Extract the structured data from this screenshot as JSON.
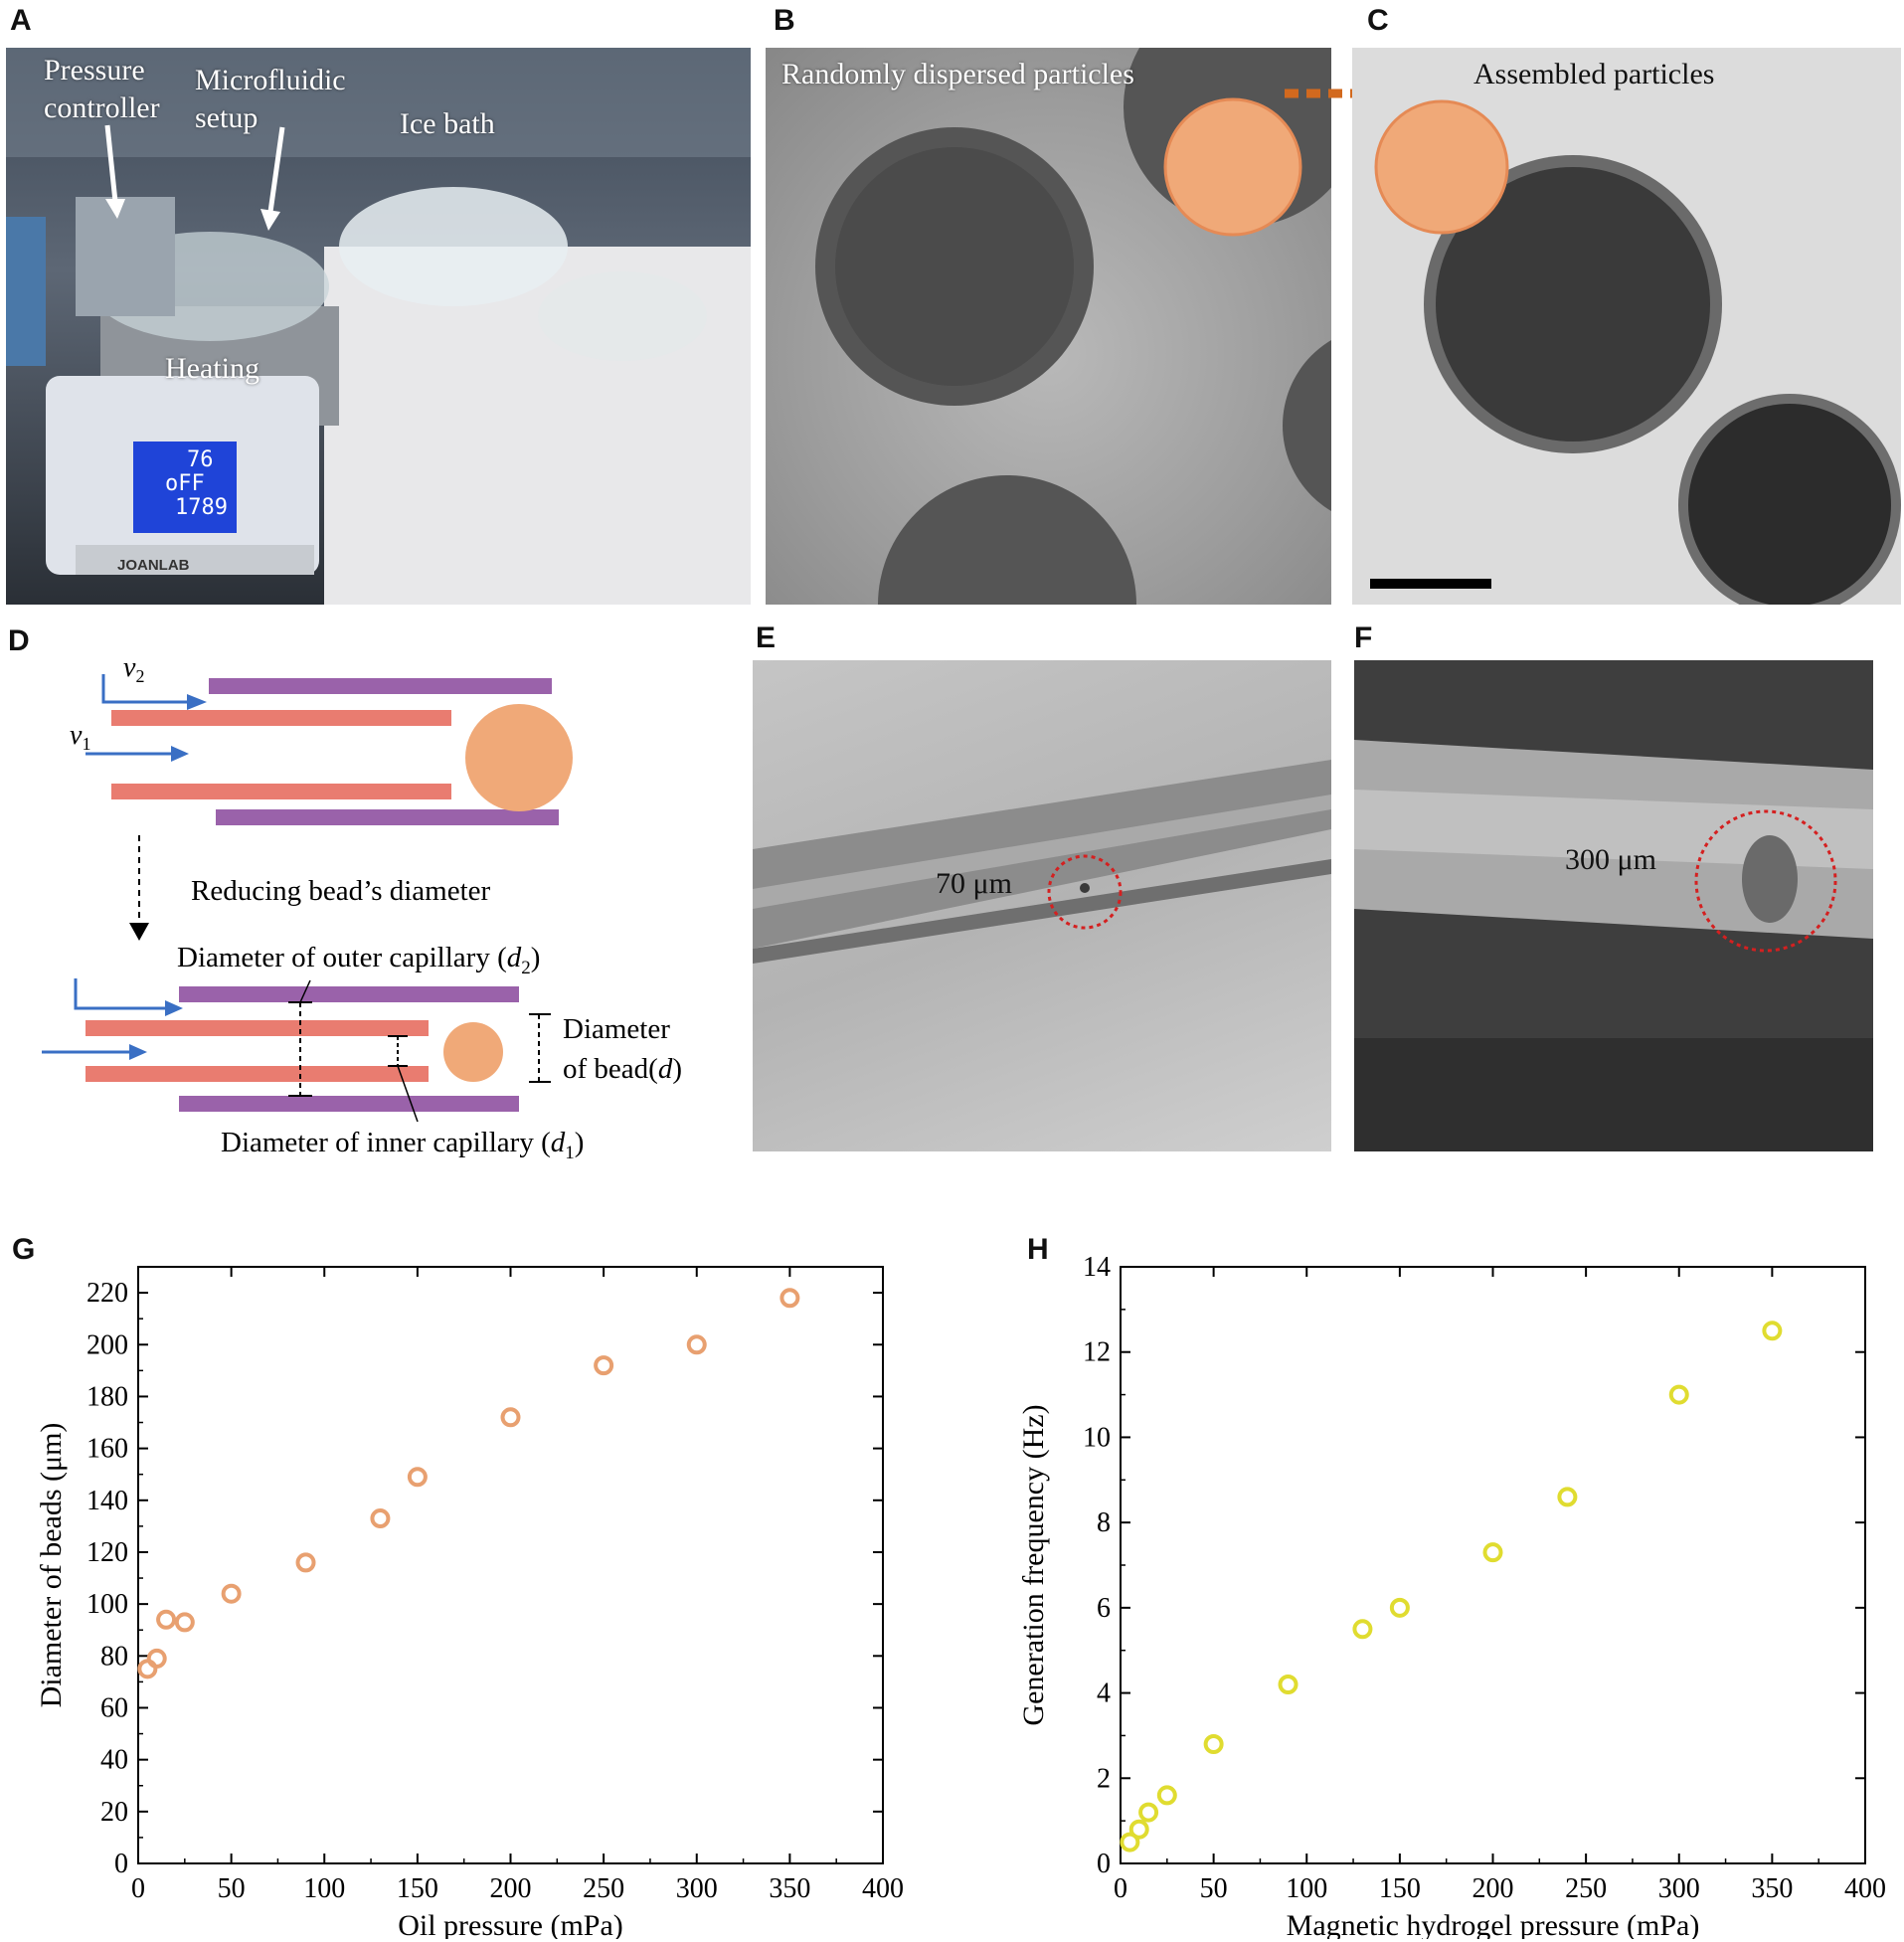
{
  "panels": {
    "A": {
      "letter": "A",
      "labels": {
        "pressure": "Pressure",
        "controller": "controller",
        "microfluidic": "Microfluidic",
        "setup": "setup",
        "ice_bath": "Ice bath",
        "heating": "Heating"
      },
      "display": {
        "line1": "76",
        "line2": "oFF",
        "line3": "1789"
      },
      "brand": "JOANLAB"
    },
    "B": {
      "letter": "B",
      "label": "Randomly dispersed particles"
    },
    "C": {
      "letter": "C",
      "label": "Assembled particles"
    },
    "D": {
      "letter": "D",
      "v2": "v",
      "v2_sub": "2",
      "v1": "v",
      "v1_sub": "1",
      "reducing": "Reducing bead’s diameter",
      "outer": "Diameter of outer capillary (",
      "outer_var": "d",
      "outer_sub": "2",
      "outer_close": ")",
      "diameter": "Diameter",
      "of_bead": "of bead(",
      "bead_var": "d",
      "bead_close": ")",
      "inner": "Diameter of inner capillary (",
      "inner_var": "d",
      "inner_sub": "1",
      "inner_close": ")"
    },
    "E": {
      "letter": "E",
      "label": "70 μm"
    },
    "F": {
      "letter": "F",
      "label": "300 μm"
    },
    "G": {
      "letter": "G"
    },
    "H": {
      "letter": "H"
    }
  },
  "colors": {
    "orange": "#e8a070",
    "yellow": "#e0dc30",
    "purple": "#9a62aa",
    "salmon": "#e97c70",
    "blue": "#3a6fc4",
    "red_dot": "#d42020"
  },
  "chart_data": [
    {
      "type": "scatter",
      "panel": "G",
      "xlabel": "Oil pressure (mPa)",
      "ylabel": "Diameter of beads (μm)",
      "xlim": [
        0,
        400
      ],
      "ylim": [
        0,
        230
      ],
      "xticks": [
        0,
        50,
        100,
        150,
        200,
        250,
        300,
        350,
        400
      ],
      "yticks": [
        0,
        20,
        40,
        60,
        80,
        100,
        120,
        140,
        160,
        180,
        200,
        220
      ],
      "x": [
        5,
        10,
        15,
        25,
        50,
        90,
        130,
        150,
        200,
        250,
        300,
        350
      ],
      "y": [
        75,
        79,
        94,
        93,
        104,
        116,
        133,
        149,
        172,
        192,
        200,
        218
      ],
      "color": "#e8a070"
    },
    {
      "type": "scatter",
      "panel": "H",
      "xlabel": "Magnetic hydrogel pressure (mPa)",
      "ylabel": "Generation frequency (Hz)",
      "xlim": [
        0,
        400
      ],
      "ylim": [
        0,
        14
      ],
      "xticks": [
        0,
        50,
        100,
        150,
        200,
        250,
        300,
        350,
        400
      ],
      "yticks": [
        0,
        2,
        4,
        6,
        8,
        10,
        12,
        14
      ],
      "x": [
        5,
        10,
        15,
        25,
        50,
        90,
        130,
        150,
        200,
        240,
        300,
        350
      ],
      "y": [
        0.5,
        0.8,
        1.2,
        1.6,
        2.8,
        4.2,
        5.5,
        6.0,
        7.3,
        8.6,
        11.0,
        12.5
      ],
      "color": "#e0dc30"
    }
  ]
}
